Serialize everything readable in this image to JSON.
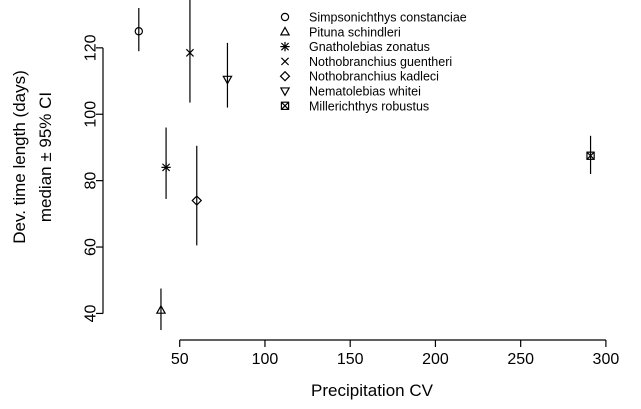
{
  "chart_data": {
    "type": "scatter",
    "title": "",
    "xlabel": "Precipitation CV",
    "ylabel_lines": [
      "Dev. time length (days)",
      "median ± 95% CI"
    ],
    "xlim": [
      5,
      320
    ],
    "ylim": [
      32,
      132
    ],
    "x_ticks": [
      50,
      100,
      150,
      200,
      250,
      300
    ],
    "y_ticks": [
      40,
      60,
      80,
      100,
      120
    ],
    "grid": false,
    "legend_position": "top-center",
    "points": [
      {
        "name": "Simpsonichthys constanciae",
        "marker": "circle",
        "x": 26,
        "y": 125,
        "ci": [
          119,
          132
        ]
      },
      {
        "name": "Pituna schindleri",
        "marker": "triangle-up",
        "x": 39,
        "y": 41,
        "ci": [
          35,
          47.5
        ]
      },
      {
        "name": "Gnatholebias zonatus",
        "marker": "asterisk",
        "x": 42,
        "y": 84,
        "ci": [
          74.5,
          96
        ]
      },
      {
        "name": "Nothobranchius guentheri",
        "marker": "cross",
        "x": 56,
        "y": 118.5,
        "ci": [
          103.5,
          135.5
        ]
      },
      {
        "name": "Nothobranchius kadleci",
        "marker": "diamond",
        "x": 60,
        "y": 74,
        "ci": [
          60.5,
          90.5
        ]
      },
      {
        "name": "Nematolebias whitei",
        "marker": "triangle-down",
        "x": 78,
        "y": 110.5,
        "ci": [
          102,
          121.5
        ]
      },
      {
        "name": "Millerichthys robustus",
        "marker": "square-cross",
        "x": 291,
        "y": 87.5,
        "ci": [
          82,
          93.5
        ]
      }
    ]
  }
}
